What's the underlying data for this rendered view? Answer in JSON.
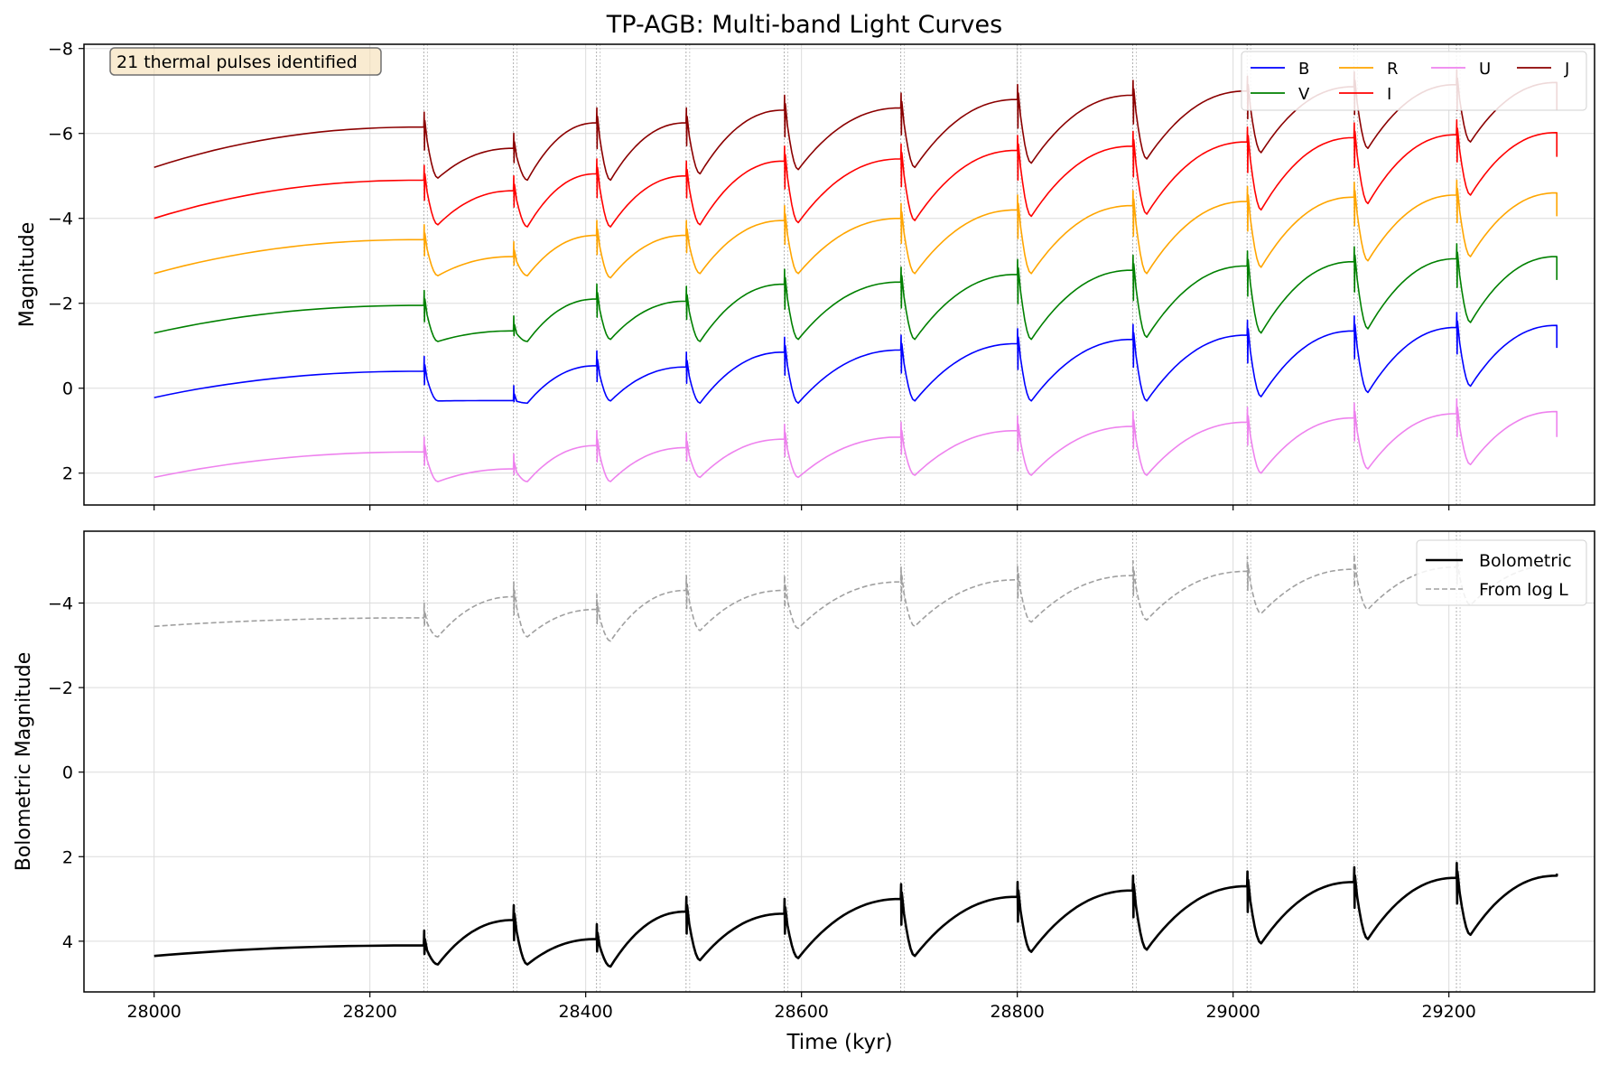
{
  "figure": {
    "title": "TP-AGB: Multi-band Light Curves"
  },
  "chart_data": [
    {
      "type": "line",
      "panel": "top",
      "title": "TP-AGB: Multi-band Light Curves",
      "xlabel": "",
      "ylabel": "Magnitude",
      "xlim": [
        27935,
        29335
      ],
      "ylim": [
        2.75,
        -8.1
      ],
      "y_inverted": true,
      "x_ticks": [
        28000,
        28200,
        28400,
        28600,
        28800,
        29000,
        29200
      ],
      "y_ticks": [
        -8,
        -6,
        -4,
        -2,
        0,
        2
      ],
      "y_tick_labels": [
        "−8",
        "−6",
        "−4",
        "−2",
        "0",
        "2"
      ],
      "grid": true,
      "legend_position": "top-right",
      "legend_columns": 4,
      "annotation": "21 thermal pulses identified",
      "pulse_times": [
        28250,
        28333,
        28410,
        28493,
        28584,
        28692,
        28800,
        28907,
        29013,
        29112,
        29207
      ],
      "series": [
        {
          "name": "B",
          "color": "#0000ff",
          "start": 0.22,
          "pre_pulse_peak": [
            -0.4,
            0.29,
            -0.53,
            -0.5,
            -0.85,
            -0.9,
            -1.05,
            -1.15,
            -1.25,
            -1.35,
            -1.43
          ],
          "post_pulse_min": [
            0.3,
            0.35,
            0.3,
            0.35,
            0.35,
            0.3,
            0.3,
            0.3,
            0.2,
            0.1,
            -0.05
          ],
          "end": -0.95
        },
        {
          "name": "V",
          "color": "#008000",
          "start": -1.3,
          "pre_pulse_peak": [
            -1.95,
            -1.35,
            -2.1,
            -2.05,
            -2.45,
            -2.5,
            -2.68,
            -2.78,
            -2.88,
            -2.98,
            -3.05
          ],
          "post_pulse_min": [
            -1.1,
            -1.1,
            -1.15,
            -1.1,
            -1.15,
            -1.15,
            -1.15,
            -1.2,
            -1.3,
            -1.4,
            -1.55
          ],
          "end": -2.55
        },
        {
          "name": "R",
          "color": "#ffa500",
          "start": -2.7,
          "pre_pulse_peak": [
            -3.5,
            -3.1,
            -3.6,
            -3.6,
            -3.95,
            -4.0,
            -4.2,
            -4.3,
            -4.4,
            -4.5,
            -4.55
          ],
          "post_pulse_min": [
            -2.65,
            -2.65,
            -2.6,
            -2.7,
            -2.7,
            -2.7,
            -2.7,
            -2.7,
            -2.85,
            -3.0,
            -3.1
          ],
          "end": -4.05
        },
        {
          "name": "I",
          "color": "#ff0000",
          "start": -4.0,
          "pre_pulse_peak": [
            -4.9,
            -4.65,
            -5.05,
            -5.0,
            -5.35,
            -5.4,
            -5.6,
            -5.7,
            -5.8,
            -5.9,
            -5.97
          ],
          "post_pulse_min": [
            -3.85,
            -3.8,
            -3.8,
            -3.85,
            -3.9,
            -3.95,
            -4.05,
            -4.1,
            -4.2,
            -4.35,
            -4.55
          ],
          "end": -5.45
        },
        {
          "name": "U",
          "color": "#ee82ee",
          "start": 2.1,
          "pre_pulse_peak": [
            1.5,
            1.9,
            1.35,
            1.4,
            1.2,
            1.15,
            1.0,
            0.9,
            0.8,
            0.7,
            0.6
          ],
          "post_pulse_min": [
            2.2,
            2.2,
            2.2,
            2.1,
            2.1,
            2.05,
            2.05,
            2.05,
            2.0,
            1.9,
            1.8
          ],
          "end": 1.15
        },
        {
          "name": "J",
          "color": "#8b0000",
          "start": -5.2,
          "pre_pulse_peak": [
            -6.15,
            -5.65,
            -6.25,
            -6.25,
            -6.55,
            -6.6,
            -6.8,
            -6.9,
            -7.0,
            -7.1,
            -7.15
          ],
          "post_pulse_min": [
            -4.95,
            -4.9,
            -4.9,
            -5.05,
            -5.15,
            -5.2,
            -5.3,
            -5.4,
            -5.55,
            -5.65,
            -5.8
          ],
          "end": -6.55
        }
      ]
    },
    {
      "type": "line",
      "panel": "bottom",
      "title": "",
      "xlabel": "Time (kyr)",
      "ylabel": "Bolometric Magnitude",
      "xlim": [
        27935,
        29335
      ],
      "ylim": [
        5.2,
        -5.7
      ],
      "y_inverted": true,
      "x_ticks": [
        28000,
        28200,
        28400,
        28600,
        28800,
        29000,
        29200
      ],
      "y_ticks": [
        -4,
        -2,
        0,
        2,
        4
      ],
      "y_tick_labels": [
        "−4",
        "−2",
        "0",
        "2",
        "4"
      ],
      "grid": true,
      "legend_position": "top-right",
      "pulse_times": [
        28250,
        28333,
        28410,
        28493,
        28584,
        28692,
        28800,
        28907,
        29013,
        29112,
        29207
      ],
      "series": [
        {
          "name": "Bolometric",
          "color": "#000000",
          "style": "solid",
          "start": 4.35,
          "pre_pulse_peak": [
            4.1,
            3.5,
            3.95,
            3.3,
            3.35,
            3.0,
            2.95,
            2.8,
            2.7,
            2.6,
            2.5
          ],
          "post_pulse_min": [
            4.55,
            4.55,
            4.6,
            4.45,
            4.4,
            4.35,
            4.25,
            4.2,
            4.05,
            3.95,
            3.85
          ],
          "end": 2.4
        },
        {
          "name": "From log L",
          "color": "#a0a0a0",
          "style": "dashed",
          "start": -3.45,
          "pre_pulse_peak": [
            -3.65,
            -4.15,
            -3.85,
            -4.3,
            -4.3,
            -4.5,
            -4.55,
            -4.65,
            -4.75,
            -4.8,
            -4.85
          ],
          "post_pulse_min": [
            -3.2,
            -3.2,
            -3.1,
            -3.35,
            -3.4,
            -3.45,
            -3.55,
            -3.6,
            -3.75,
            -3.85,
            -3.95
          ],
          "end": -4.9
        }
      ]
    }
  ]
}
